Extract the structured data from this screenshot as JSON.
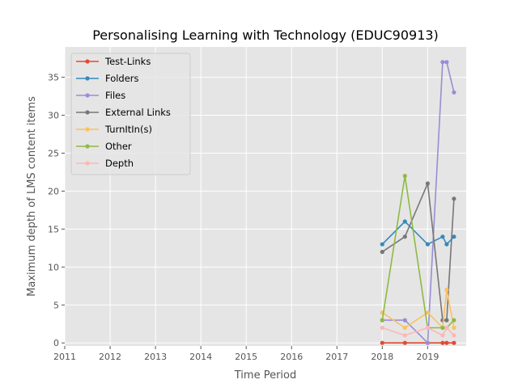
{
  "chart_data": {
    "type": "line",
    "title": "Personalising Learning with Technology (EDUC90913)",
    "xlabel": "Time Period",
    "ylabel": "Maximum depth of LMS content items",
    "xlim": [
      2011.0,
      2019.85
    ],
    "ylim": [
      -0.4,
      39.0
    ],
    "xticks": [
      {
        "value": 2011,
        "label": "2011"
      },
      {
        "value": 2012,
        "label": "2012"
      },
      {
        "value": 2013,
        "label": "2013"
      },
      {
        "value": 2014,
        "label": "2014"
      },
      {
        "value": 2015,
        "label": "2015"
      },
      {
        "value": 2016,
        "label": "2016"
      },
      {
        "value": 2017,
        "label": "2017"
      },
      {
        "value": 2018,
        "label": "2018"
      },
      {
        "value": 2019,
        "label": "2019"
      }
    ],
    "yticks": [
      {
        "value": 0,
        "label": "0"
      },
      {
        "value": 5,
        "label": "5"
      },
      {
        "value": 10,
        "label": "10"
      },
      {
        "value": 15,
        "label": "15"
      },
      {
        "value": 20,
        "label": "20"
      },
      {
        "value": 25,
        "label": "25"
      },
      {
        "value": 30,
        "label": "30"
      },
      {
        "value": 35,
        "label": "35"
      }
    ],
    "x": [
      2018.0,
      2018.5,
      2019.0,
      2019.33,
      2019.42,
      2019.58
    ],
    "grid": true,
    "legend_position": "top-left",
    "series": [
      {
        "name": "Test-Links",
        "color": "#E24A33",
        "values": [
          0,
          0,
          0,
          0,
          0,
          0
        ]
      },
      {
        "name": "Folders",
        "color": "#348ABD",
        "values": [
          13,
          16,
          13,
          14,
          13,
          14
        ]
      },
      {
        "name": "Files",
        "color": "#988ED5",
        "values": [
          3,
          3,
          0,
          37,
          37,
          33
        ]
      },
      {
        "name": "External Links",
        "color": "#777777",
        "values": [
          12,
          14,
          21,
          3,
          3,
          19
        ]
      },
      {
        "name": "TurnItIn(s)",
        "color": "#FBC15E",
        "values": [
          4,
          2,
          4,
          2,
          7,
          2
        ]
      },
      {
        "name": "Other",
        "color": "#8EBA42",
        "values": [
          3,
          22,
          2,
          2,
          2,
          3
        ]
      },
      {
        "name": "Depth",
        "color": "#FFB5B8",
        "values": [
          2,
          1,
          2,
          1,
          2,
          1
        ]
      }
    ]
  }
}
